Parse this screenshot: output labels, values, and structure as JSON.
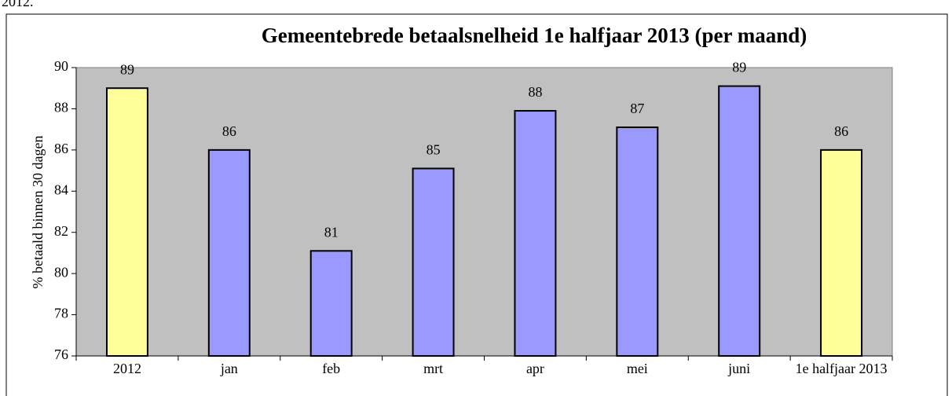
{
  "page_text": "2012.",
  "chart_data": {
    "type": "bar",
    "title": "Gemeentebrede betaalsnelheid 1e halfjaar 2013 (per maand)",
    "y_label": "% betaald binnen 30 dagen",
    "categories": [
      "2012",
      "jan",
      "feb",
      "mrt",
      "apr",
      "mei",
      "juni",
      "1e halfjaar 2013"
    ],
    "values": [
      89.0,
      86.0,
      81.1,
      85.1,
      87.9,
      87.1,
      89.1,
      86.0
    ],
    "value_labels": [
      "89",
      "86",
      "81",
      "85",
      "88",
      "87",
      "89",
      "86"
    ],
    "colors": [
      "#ffff99",
      "#9999ff",
      "#9999ff",
      "#9999ff",
      "#9999ff",
      "#9999ff",
      "#9999ff",
      "#ffff99"
    ],
    "ylim": [
      76,
      90
    ],
    "yticks": [
      76,
      78,
      80,
      82,
      84,
      86,
      88,
      90
    ],
    "plot_background": "#c0c0c0"
  }
}
